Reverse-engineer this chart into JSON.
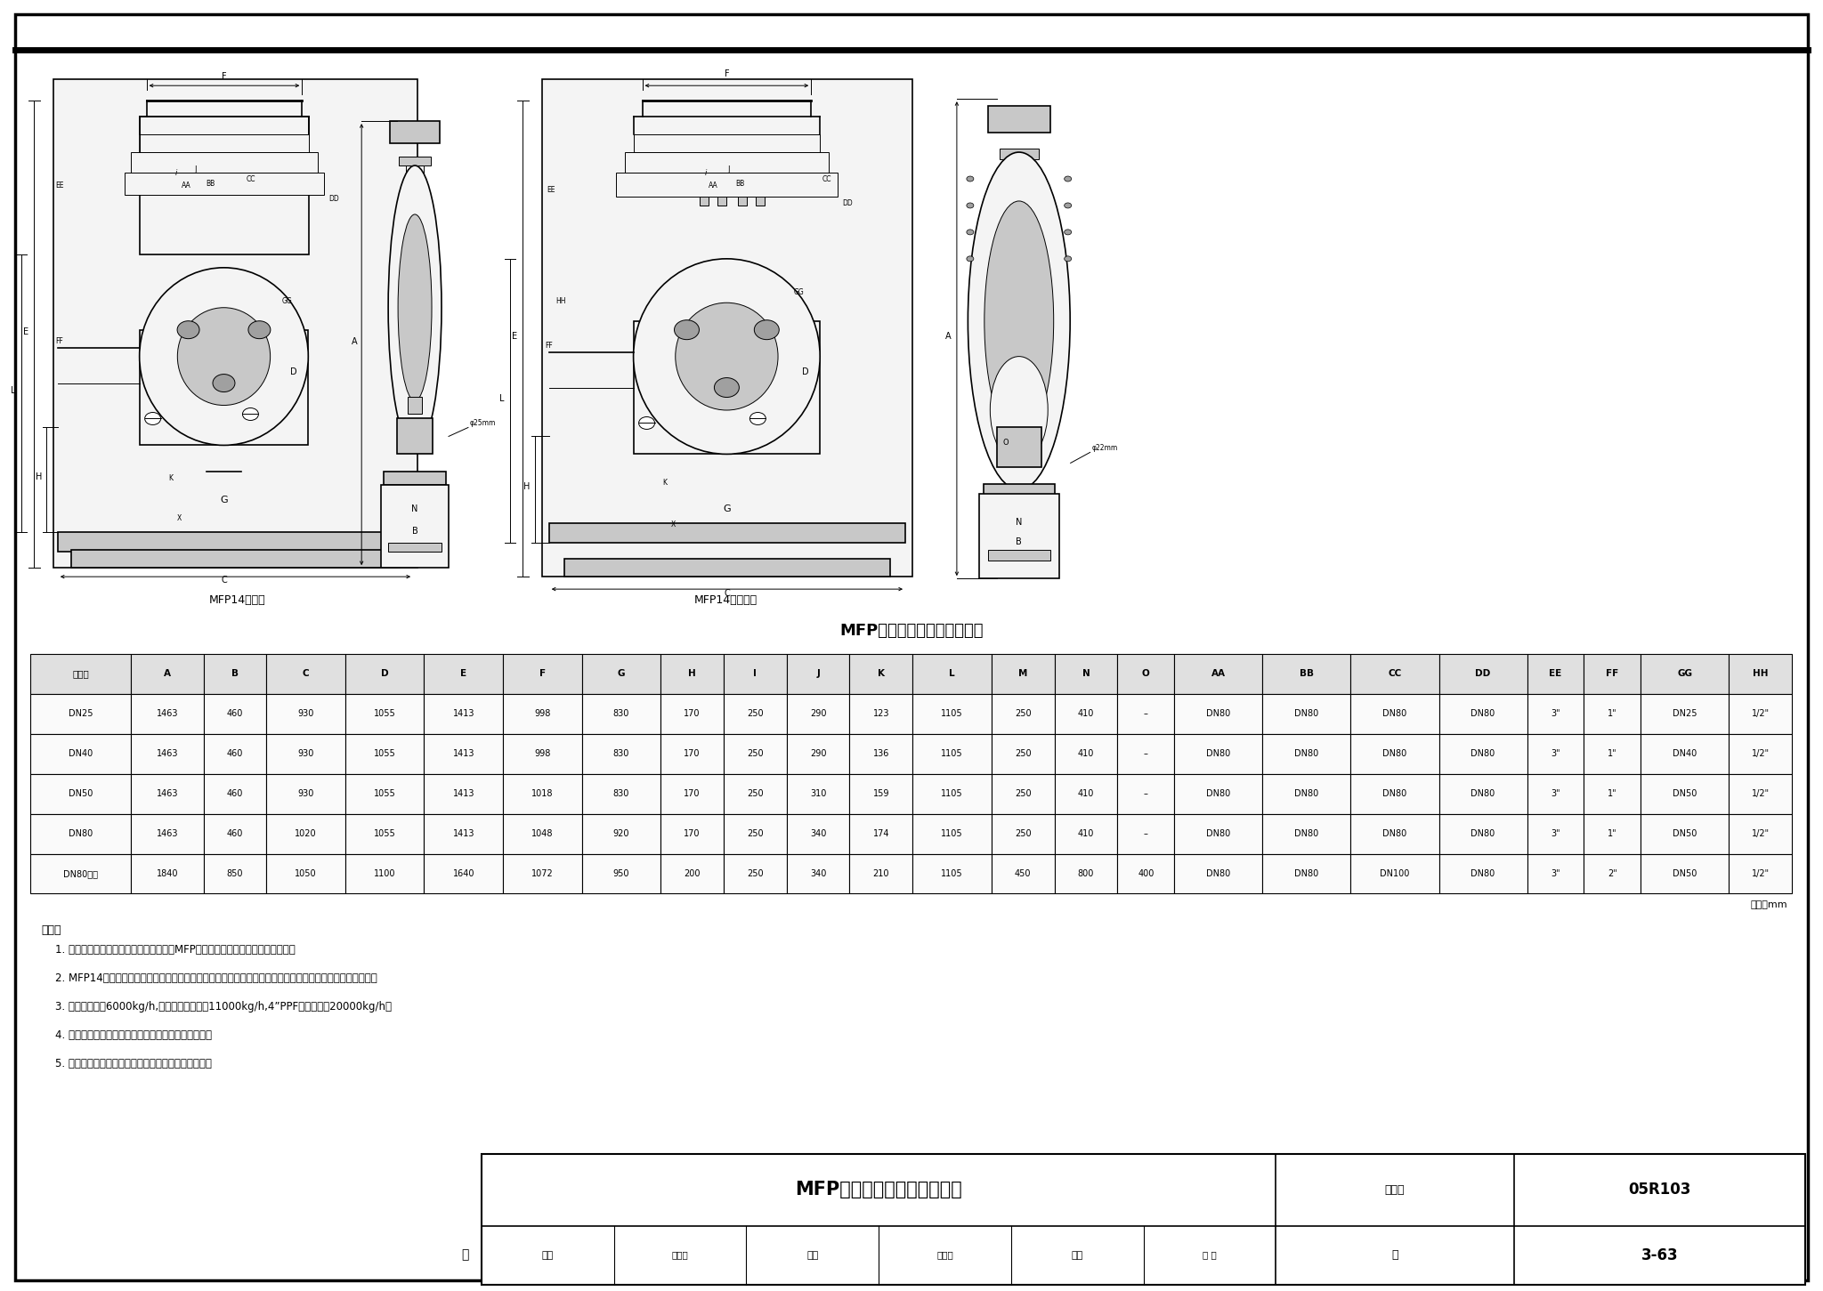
{
  "figure_number": "05R103",
  "page": "3-63",
  "table_title": "MFP冷凝水回收泵安装尺寸表",
  "label1": "MFP14组合泵",
  "label2": "MFP14双泵组合",
  "unit_note": "单位：mm",
  "notes_title": "说明：",
  "notes": [
    "1. 本图依据斯派克工程（中国）有限公司MFP自动冷凝水回收泵的技术资料编制。",
    "2. MFP14自动泵以蒸汽或压缩空气为动力，将高温冷凝水等液体提升至高位，专业设计用于回收高温冷凝水。",
    "3. 单泵最大排量6000kg/h,组合双泵最大排量11000kg/h,4”PPF泵最大排量20000kg/h。",
    "4. 浮球动作机构，无电泵固有的汽蕨和机械密封问题。",
    "5. 现场无需大水管道，减少占地面积及改善机房环境。"
  ],
  "table_headers": [
    "泵口径",
    "A",
    "B",
    "C",
    "D",
    "E",
    "F",
    "G",
    "H",
    "I",
    "J",
    "K",
    "L",
    "M",
    "N",
    "O",
    "AA",
    "BB",
    "CC",
    "DD",
    "EE",
    "FF",
    "GG",
    "HH"
  ],
  "table_data": [
    [
      "DN25",
      "1463",
      "460",
      "930",
      "1055",
      "1413",
      "998",
      "830",
      "170",
      "250",
      "290",
      "123",
      "1105",
      "250",
      "410",
      "–",
      "DN80",
      "DN80",
      "DN80",
      "DN80",
      "3\"",
      "1\"",
      "DN25",
      "1/2\""
    ],
    [
      "DN40",
      "1463",
      "460",
      "930",
      "1055",
      "1413",
      "998",
      "830",
      "170",
      "250",
      "290",
      "136",
      "1105",
      "250",
      "410",
      "–",
      "DN80",
      "DN80",
      "DN80",
      "DN80",
      "3\"",
      "1\"",
      "DN40",
      "1/2\""
    ],
    [
      "DN50",
      "1463",
      "460",
      "930",
      "1055",
      "1413",
      "1018",
      "830",
      "170",
      "250",
      "310",
      "159",
      "1105",
      "250",
      "410",
      "–",
      "DN80",
      "DN80",
      "DN80",
      "DN80",
      "3\"",
      "1\"",
      "DN50",
      "1/2\""
    ],
    [
      "DN80",
      "1463",
      "460",
      "1020",
      "1055",
      "1413",
      "1048",
      "920",
      "170",
      "250",
      "340",
      "174",
      "1105",
      "250",
      "410",
      "–",
      "DN80",
      "DN80",
      "DN80",
      "DN80",
      "3\"",
      "1\"",
      "DN50",
      "1/2\""
    ],
    [
      "DN80双泵",
      "1840",
      "850",
      "1050",
      "1100",
      "1640",
      "1072",
      "950",
      "200",
      "250",
      "340",
      "210",
      "1105",
      "450",
      "800",
      "400",
      "DN80",
      "DN80",
      "DN100",
      "DN80",
      "3\"",
      "2\"",
      "DN50",
      "1/2\""
    ]
  ],
  "title_box": {
    "main_title": "MFP自动冷凝水回收泵安装图",
    "fig_no_label": "图集号",
    "fig_no": "05R103",
    "page_label": "页",
    "page_no": "3-63",
    "review_label": "审核",
    "reviewer": "牛小化",
    "check_label": "校对",
    "checker": "郭奇志",
    "design_label": "设计",
    "designer": "石 英"
  },
  "bg_color": "#ffffff"
}
